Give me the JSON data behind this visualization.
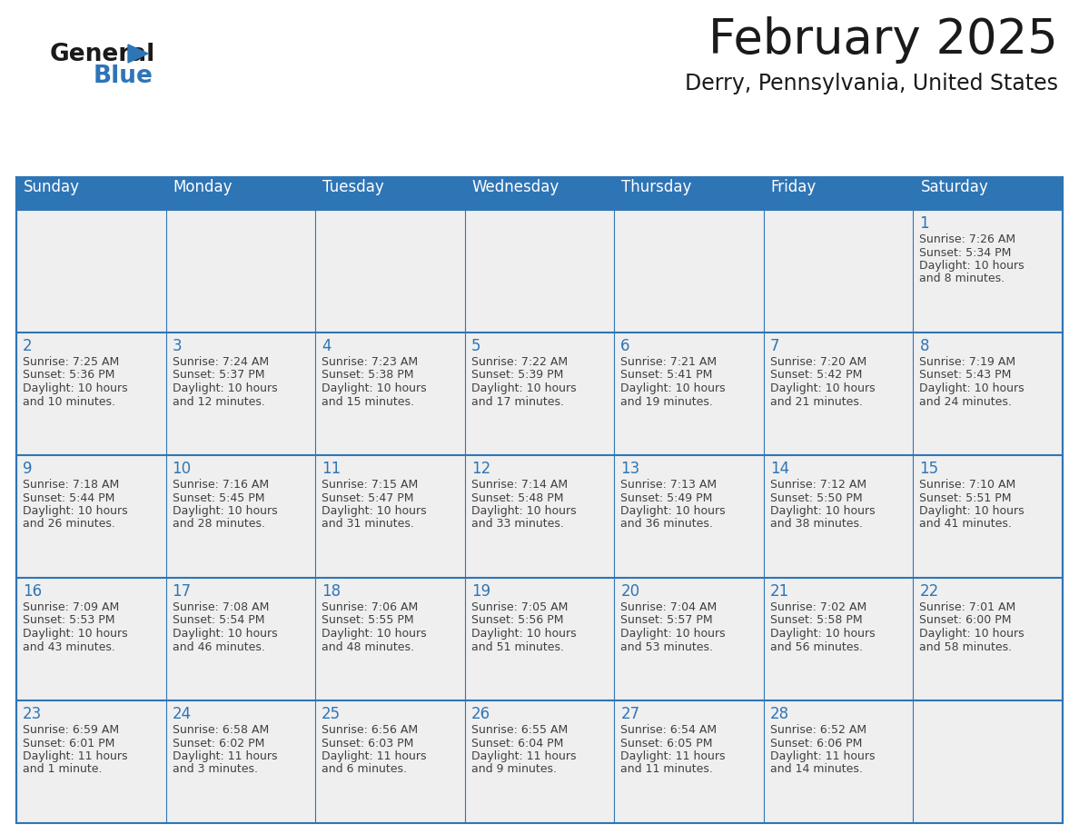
{
  "title": "February 2025",
  "subtitle": "Derry, Pennsylvania, United States",
  "header_bg": "#2E75B6",
  "header_text_color": "#FFFFFF",
  "border_color": "#2E75B6",
  "day_number_color": "#2E75B6",
  "cell_text_color": "#404040",
  "row_sep_color": "#2E75B6",
  "days_of_week": [
    "Sunday",
    "Monday",
    "Tuesday",
    "Wednesday",
    "Thursday",
    "Friday",
    "Saturday"
  ],
  "calendar": [
    [
      null,
      null,
      null,
      null,
      null,
      null,
      {
        "day": "1",
        "sunrise": "7:26 AM",
        "sunset": "5:34 PM",
        "daylight": "10 hours\nand 8 minutes."
      }
    ],
    [
      {
        "day": "2",
        "sunrise": "7:25 AM",
        "sunset": "5:36 PM",
        "daylight": "10 hours\nand 10 minutes."
      },
      {
        "day": "3",
        "sunrise": "7:24 AM",
        "sunset": "5:37 PM",
        "daylight": "10 hours\nand 12 minutes."
      },
      {
        "day": "4",
        "sunrise": "7:23 AM",
        "sunset": "5:38 PM",
        "daylight": "10 hours\nand 15 minutes."
      },
      {
        "day": "5",
        "sunrise": "7:22 AM",
        "sunset": "5:39 PM",
        "daylight": "10 hours\nand 17 minutes."
      },
      {
        "day": "6",
        "sunrise": "7:21 AM",
        "sunset": "5:41 PM",
        "daylight": "10 hours\nand 19 minutes."
      },
      {
        "day": "7",
        "sunrise": "7:20 AM",
        "sunset": "5:42 PM",
        "daylight": "10 hours\nand 21 minutes."
      },
      {
        "day": "8",
        "sunrise": "7:19 AM",
        "sunset": "5:43 PM",
        "daylight": "10 hours\nand 24 minutes."
      }
    ],
    [
      {
        "day": "9",
        "sunrise": "7:18 AM",
        "sunset": "5:44 PM",
        "daylight": "10 hours\nand 26 minutes."
      },
      {
        "day": "10",
        "sunrise": "7:16 AM",
        "sunset": "5:45 PM",
        "daylight": "10 hours\nand 28 minutes."
      },
      {
        "day": "11",
        "sunrise": "7:15 AM",
        "sunset": "5:47 PM",
        "daylight": "10 hours\nand 31 minutes."
      },
      {
        "day": "12",
        "sunrise": "7:14 AM",
        "sunset": "5:48 PM",
        "daylight": "10 hours\nand 33 minutes."
      },
      {
        "day": "13",
        "sunrise": "7:13 AM",
        "sunset": "5:49 PM",
        "daylight": "10 hours\nand 36 minutes."
      },
      {
        "day": "14",
        "sunrise": "7:12 AM",
        "sunset": "5:50 PM",
        "daylight": "10 hours\nand 38 minutes."
      },
      {
        "day": "15",
        "sunrise": "7:10 AM",
        "sunset": "5:51 PM",
        "daylight": "10 hours\nand 41 minutes."
      }
    ],
    [
      {
        "day": "16",
        "sunrise": "7:09 AM",
        "sunset": "5:53 PM",
        "daylight": "10 hours\nand 43 minutes."
      },
      {
        "day": "17",
        "sunrise": "7:08 AM",
        "sunset": "5:54 PM",
        "daylight": "10 hours\nand 46 minutes."
      },
      {
        "day": "18",
        "sunrise": "7:06 AM",
        "sunset": "5:55 PM",
        "daylight": "10 hours\nand 48 minutes."
      },
      {
        "day": "19",
        "sunrise": "7:05 AM",
        "sunset": "5:56 PM",
        "daylight": "10 hours\nand 51 minutes."
      },
      {
        "day": "20",
        "sunrise": "7:04 AM",
        "sunset": "5:57 PM",
        "daylight": "10 hours\nand 53 minutes."
      },
      {
        "day": "21",
        "sunrise": "7:02 AM",
        "sunset": "5:58 PM",
        "daylight": "10 hours\nand 56 minutes."
      },
      {
        "day": "22",
        "sunrise": "7:01 AM",
        "sunset": "6:00 PM",
        "daylight": "10 hours\nand 58 minutes."
      }
    ],
    [
      {
        "day": "23",
        "sunrise": "6:59 AM",
        "sunset": "6:01 PM",
        "daylight": "11 hours\nand 1 minute."
      },
      {
        "day": "24",
        "sunrise": "6:58 AM",
        "sunset": "6:02 PM",
        "daylight": "11 hours\nand 3 minutes."
      },
      {
        "day": "25",
        "sunrise": "6:56 AM",
        "sunset": "6:03 PM",
        "daylight": "11 hours\nand 6 minutes."
      },
      {
        "day": "26",
        "sunrise": "6:55 AM",
        "sunset": "6:04 PM",
        "daylight": "11 hours\nand 9 minutes."
      },
      {
        "day": "27",
        "sunrise": "6:54 AM",
        "sunset": "6:05 PM",
        "daylight": "11 hours\nand 11 minutes."
      },
      {
        "day": "28",
        "sunrise": "6:52 AM",
        "sunset": "6:06 PM",
        "daylight": "11 hours\nand 14 minutes."
      },
      null
    ]
  ]
}
